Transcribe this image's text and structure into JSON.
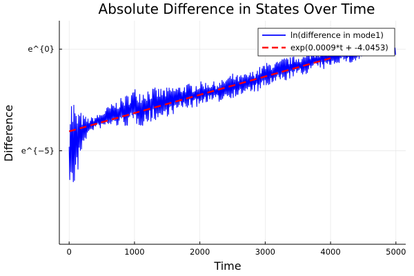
{
  "chart_data": {
    "type": "line",
    "title": "Absolute Difference in States Over Time",
    "xlabel": "Time",
    "ylabel": "Difference",
    "xlim": [
      -150,
      5150
    ],
    "ylim": [
      -9.6,
      1.4
    ],
    "x_ticks": [
      0,
      1000,
      2000,
      3000,
      4000,
      5000
    ],
    "x_tick_labels": [
      "0",
      "1000",
      "2000",
      "3000",
      "4000",
      "5000"
    ],
    "y_ticks": [
      -5,
      0
    ],
    "y_tick_labels": [
      "e^{−5}",
      "e^{0}"
    ],
    "grid": true,
    "legend_position": "top-right",
    "series": [
      {
        "name": "ln(difference in mode1)",
        "color": "#0000ff",
        "style": "solid",
        "description_envelope": {
          "x": [
            0,
            20,
            50,
            80,
            100,
            130,
            200,
            300,
            400,
            500,
            600,
            700,
            800,
            900,
            1000,
            1100,
            1200,
            1300,
            1400,
            1500,
            1600,
            1700,
            1800,
            1900,
            2000,
            2100,
            2200,
            2300,
            2400,
            2500,
            2600,
            2700,
            2800,
            2900,
            3000,
            3100,
            3200,
            3300,
            3400,
            3500,
            3600,
            3700,
            3800,
            3900,
            4000,
            4100,
            4200,
            4300,
            4400,
            4500,
            4600,
            4700,
            4760,
            4800,
            4900,
            5000
          ],
          "center": [
            -4.9,
            -5.0,
            -4.6,
            -4.8,
            -4.6,
            -4.6,
            -4.0,
            -3.8,
            -3.6,
            -3.5,
            -3.3,
            -3.2,
            -3.1,
            -3.0,
            -2.8,
            -2.9,
            -2.8,
            -2.7,
            -2.7,
            -2.6,
            -2.5,
            -2.4,
            -2.3,
            -2.3,
            -2.2,
            -2.1,
            -2.1,
            -2.1,
            -1.9,
            -1.8,
            -1.8,
            -1.7,
            -1.6,
            -1.5,
            -1.3,
            -1.2,
            -1.1,
            -1.0,
            -0.9,
            -0.8,
            -0.8,
            -0.6,
            -0.5,
            -0.5,
            -0.4,
            -0.3,
            -0.2,
            -0.3,
            -0.2,
            -0.1,
            0.0,
            0.1,
            0.3,
            0.2,
            0.1,
            -0.1
          ],
          "amplitude": [
            0.4,
            3.0,
            2.0,
            2.6,
            1.4,
            1.8,
            0.8,
            0.4,
            0.3,
            0.4,
            0.5,
            0.6,
            0.7,
            0.8,
            0.9,
            0.9,
            0.9,
            0.8,
            0.8,
            0.7,
            0.7,
            0.6,
            0.6,
            0.6,
            0.6,
            0.5,
            0.5,
            0.5,
            0.5,
            0.6,
            0.5,
            0.5,
            0.5,
            0.6,
            0.6,
            0.6,
            0.5,
            0.6,
            0.5,
            0.5,
            0.5,
            0.4,
            0.4,
            0.5,
            0.4,
            0.4,
            0.4,
            0.4,
            0.4,
            0.3,
            0.3,
            0.3,
            0.3,
            0.3,
            0.3,
            0.3
          ]
        }
      },
      {
        "name": "exp(0.0009*t + -4.0453)",
        "color": "#ff0000",
        "style": "dashed",
        "slope": 0.0009,
        "intercept": -4.0453,
        "x": [
          0,
          4000
        ]
      }
    ]
  }
}
